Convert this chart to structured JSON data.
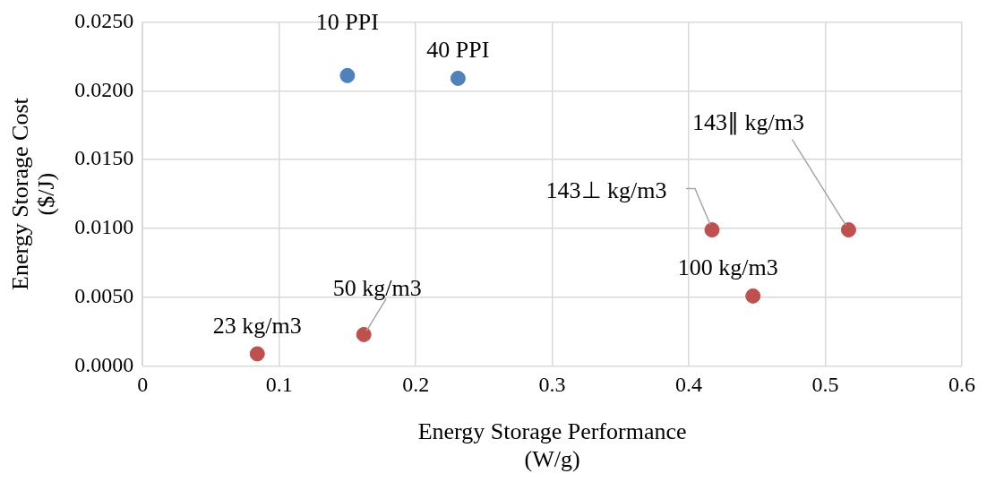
{
  "chart_data": {
    "type": "scatter",
    "xlabel": "Energy Storage Performance\n(W/g)",
    "ylabel": "Energy Storage Cost\n($/J)",
    "series": [
      {
        "color": "#4f81bd",
        "x": [
          0.15,
          0.231
        ],
        "values": [
          0.0211,
          0.0209
        ]
      },
      {
        "color": "#c0504d",
        "x": [
          0.084,
          0.162,
          0.417,
          0.447,
          0.517
        ],
        "values": [
          0.0009,
          0.0023,
          0.0099,
          0.0051,
          0.0099
        ]
      }
    ],
    "xlim": [
      0,
      0.6
    ],
    "xticks": [
      0,
      0.1,
      0.2,
      0.3,
      0.4,
      0.5,
      0.6
    ],
    "ylim": [
      0,
      0.025
    ],
    "yticks": [
      {
        "value": 0,
        "label": "0.0000"
      },
      {
        "value": 0.005,
        "label": "0.0050"
      },
      {
        "value": 0.01,
        "label": "0.0100"
      },
      {
        "value": 0.015,
        "label": "0.0150"
      },
      {
        "value": 0.02,
        "label": "0.0200"
      },
      {
        "value": 0.025,
        "label": "0.0250"
      }
    ],
    "grid": true,
    "marker": "circle",
    "legend": false,
    "annotations": [
      {
        "text": "10 PPI",
        "x": 0.15,
        "y": 0.0211
      },
      {
        "text": "40 PPI",
        "x": 0.231,
        "y": 0.0209
      },
      {
        "text": "23 kg/m3",
        "x": 0.084,
        "y": 0.0009
      },
      {
        "text": "50 kg/m3",
        "x": 0.162,
        "y": 0.0023
      },
      {
        "text": "143⊥ kg/m3",
        "x": 0.417,
        "y": 0.0099
      },
      {
        "text": "100 kg/m3",
        "x": 0.447,
        "y": 0.0051
      },
      {
        "text": "143∥ kg/m3",
        "x": 0.517,
        "y": 0.0099
      }
    ]
  }
}
